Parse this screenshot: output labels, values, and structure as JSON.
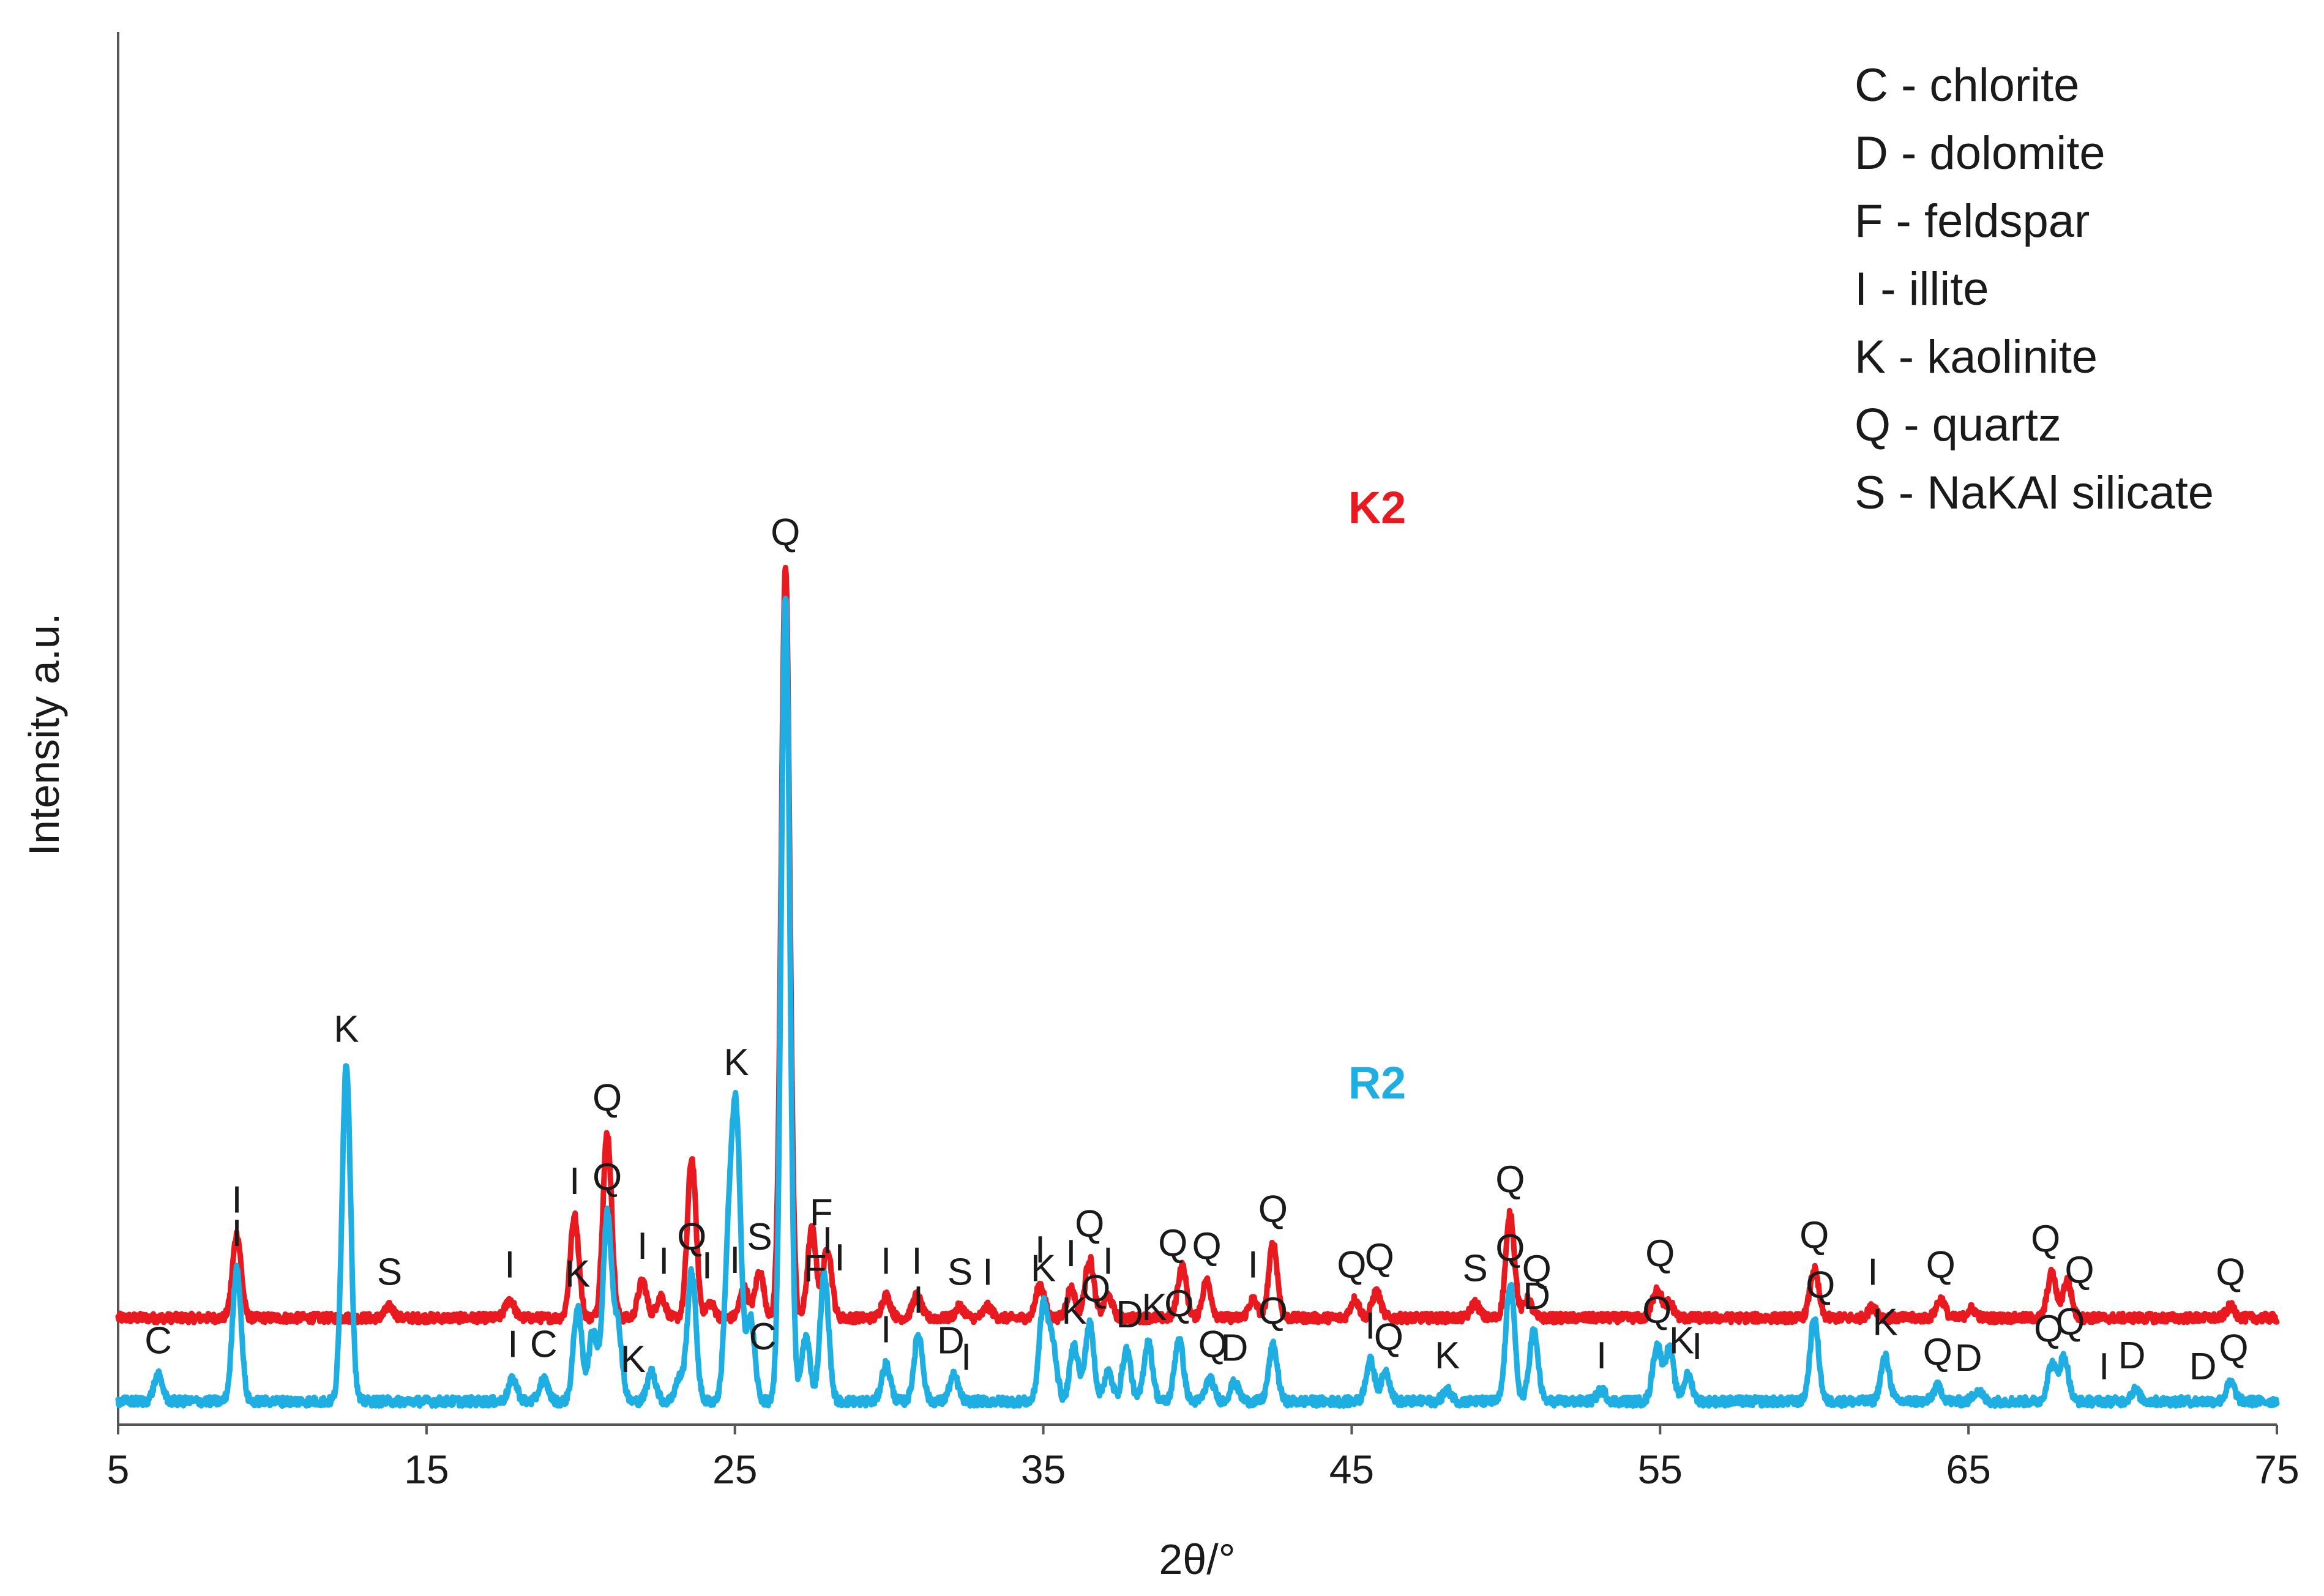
{
  "chart_data": {
    "type": "line",
    "xlabel": "2θ/°",
    "ylabel": "Intensity a.u.",
    "xlim": [
      5,
      75
    ],
    "xticks": [
      5,
      15,
      25,
      35,
      45,
      55,
      65,
      75
    ],
    "grid": false,
    "legend_position": "top-right",
    "legend": [
      "C - chlorite",
      "D - dolomite",
      "F - feldspar",
      "I - illite",
      "K - kaolinite",
      "Q - quartz",
      "S - NaKAl silicate"
    ],
    "series": [
      {
        "name": "K2",
        "color": "#e8191f",
        "baseline": 0.45,
        "peaks": [
          [
            8.85,
            0.45
          ],
          [
            13.8,
            0.06
          ],
          [
            17.7,
            0.1
          ],
          [
            19.8,
            0.55
          ],
          [
            20.86,
            1.0
          ],
          [
            22.0,
            0.2
          ],
          [
            22.6,
            0.12
          ],
          [
            23.6,
            0.86
          ],
          [
            24.2,
            0.08
          ],
          [
            25.3,
            0.16
          ],
          [
            25.8,
            0.25
          ],
          [
            26.64,
            4.05
          ],
          [
            27.5,
            0.48
          ],
          [
            28.0,
            0.38
          ],
          [
            29.9,
            0.12
          ],
          [
            30.9,
            0.12
          ],
          [
            32.3,
            0.06
          ],
          [
            33.2,
            0.06
          ],
          [
            34.9,
            0.18
          ],
          [
            35.9,
            0.16
          ],
          [
            36.5,
            0.32
          ],
          [
            37.1,
            0.12
          ],
          [
            39.5,
            0.28
          ],
          [
            40.3,
            0.2
          ],
          [
            41.8,
            0.1
          ],
          [
            42.45,
            0.4
          ],
          [
            45.1,
            0.1
          ],
          [
            45.8,
            0.14
          ],
          [
            49.0,
            0.08
          ],
          [
            50.14,
            0.56
          ],
          [
            50.7,
            0.1
          ],
          [
            54.9,
            0.16
          ],
          [
            55.3,
            0.08
          ],
          [
            60.0,
            0.26
          ],
          [
            61.9,
            0.06
          ],
          [
            64.1,
            0.1
          ],
          [
            65.1,
            0.05
          ],
          [
            67.7,
            0.24
          ],
          [
            68.2,
            0.2
          ],
          [
            73.5,
            0.06
          ]
        ],
        "labels": [
          [
            "I",
            8.85
          ],
          [
            "S",
            13.8
          ],
          [
            "I",
            17.7
          ],
          [
            "I",
            19.8
          ],
          [
            "Q",
            20.86
          ],
          [
            "I",
            22.0
          ],
          [
            "I",
            22.7
          ],
          [
            "I",
            24.1
          ],
          [
            "I",
            25.0
          ],
          [
            "S",
            25.8
          ],
          [
            "Q",
            26.64
          ],
          [
            "F",
            27.8
          ],
          [
            "I",
            28.4
          ],
          [
            "I",
            29.9
          ],
          [
            "I",
            30.9
          ],
          [
            "S",
            32.3
          ],
          [
            "I",
            33.2
          ],
          [
            "I",
            34.9
          ],
          [
            "I",
            35.9
          ],
          [
            "Q",
            36.5
          ],
          [
            "I",
            37.1
          ],
          [
            "Q",
            39.2
          ],
          [
            "Q",
            40.3
          ],
          [
            "I",
            41.8
          ],
          [
            "Q",
            42.45
          ],
          [
            "Q",
            45.0
          ],
          [
            "Q",
            45.9
          ],
          [
            "S",
            49.0
          ],
          [
            "Q",
            50.14
          ],
          [
            "Q",
            51.0
          ],
          [
            "Q",
            55.0
          ],
          [
            "Q",
            60.0
          ],
          [
            "I",
            61.9
          ],
          [
            "Q",
            64.1
          ],
          [
            "Q",
            67.5
          ],
          [
            "Q",
            68.6
          ],
          [
            "Q",
            73.5
          ]
        ]
      },
      {
        "name": "R2",
        "color": "#1eaee2",
        "baseline": 0.0,
        "peaks": [
          [
            6.3,
            0.14
          ],
          [
            8.85,
            0.72
          ],
          [
            12.4,
            1.82
          ],
          [
            17.8,
            0.12
          ],
          [
            18.8,
            0.12
          ],
          [
            19.9,
            0.5
          ],
          [
            20.4,
            0.38
          ],
          [
            20.86,
            1.0
          ],
          [
            21.2,
            0.4
          ],
          [
            22.3,
            0.16
          ],
          [
            23.2,
            0.12
          ],
          [
            23.6,
            0.7
          ],
          [
            24.8,
            0.8
          ],
          [
            25.05,
            1.44
          ],
          [
            25.5,
            0.45
          ],
          [
            26.64,
            4.35
          ],
          [
            27.3,
            0.35
          ],
          [
            27.9,
            0.68
          ],
          [
            29.9,
            0.2
          ],
          [
            30.95,
            0.36
          ],
          [
            32.1,
            0.14
          ],
          [
            35.0,
            0.5
          ],
          [
            35.3,
            0.3
          ],
          [
            36.0,
            0.3
          ],
          [
            36.5,
            0.42
          ],
          [
            37.1,
            0.16
          ],
          [
            37.7,
            0.28
          ],
          [
            38.4,
            0.32
          ],
          [
            39.4,
            0.34
          ],
          [
            40.4,
            0.12
          ],
          [
            41.2,
            0.1
          ],
          [
            42.45,
            0.3
          ],
          [
            45.6,
            0.22
          ],
          [
            46.1,
            0.16
          ],
          [
            48.1,
            0.06
          ],
          [
            50.14,
            0.64
          ],
          [
            50.9,
            0.38
          ],
          [
            53.1,
            0.06
          ],
          [
            54.9,
            0.3
          ],
          [
            55.3,
            0.28
          ],
          [
            55.9,
            0.14
          ],
          [
            60.0,
            0.44
          ],
          [
            62.3,
            0.24
          ],
          [
            64.0,
            0.08
          ],
          [
            65.3,
            0.06
          ],
          [
            67.7,
            0.2
          ],
          [
            68.1,
            0.24
          ],
          [
            70.4,
            0.06
          ],
          [
            73.5,
            0.1
          ]
        ],
        "labels": [
          [
            "C",
            6.3
          ],
          [
            "I",
            8.85
          ],
          [
            "K",
            12.4
          ],
          [
            "I",
            17.8
          ],
          [
            "C",
            18.8
          ],
          [
            "K",
            19.9
          ],
          [
            "Q",
            20.86
          ],
          [
            "K",
            21.7
          ],
          [
            "Q",
            23.6
          ],
          [
            "K",
            25.05
          ],
          [
            "C",
            25.9
          ],
          [
            "F",
            27.6
          ],
          [
            "I",
            28.0
          ],
          [
            "I",
            29.9
          ],
          [
            "I",
            30.95
          ],
          [
            "D",
            32.0
          ],
          [
            "I",
            32.5
          ],
          [
            "K",
            35.0
          ],
          [
            "K",
            36.0
          ],
          [
            "Q",
            36.7
          ],
          [
            "D",
            37.8
          ],
          [
            "K",
            38.6
          ],
          [
            "Q",
            39.4
          ],
          [
            "Q",
            40.5
          ],
          [
            "D",
            41.2
          ],
          [
            "Q",
            42.45
          ],
          [
            "I",
            45.6
          ],
          [
            "Q",
            46.2
          ],
          [
            "K",
            48.1
          ],
          [
            "Q",
            50.14
          ],
          [
            "D",
            51.0
          ],
          [
            "I",
            53.1
          ],
          [
            "Q",
            54.9
          ],
          [
            "K",
            55.7
          ],
          [
            "I",
            56.2
          ],
          [
            "Q",
            60.2
          ],
          [
            "K",
            62.3
          ],
          [
            "Q",
            64.0
          ],
          [
            "D",
            65.0
          ],
          [
            "Q",
            67.6
          ],
          [
            "Q",
            68.3
          ],
          [
            "I",
            69.4
          ],
          [
            "D",
            70.3
          ],
          [
            "D",
            72.6
          ],
          [
            "Q",
            73.6
          ]
        ]
      }
    ]
  }
}
